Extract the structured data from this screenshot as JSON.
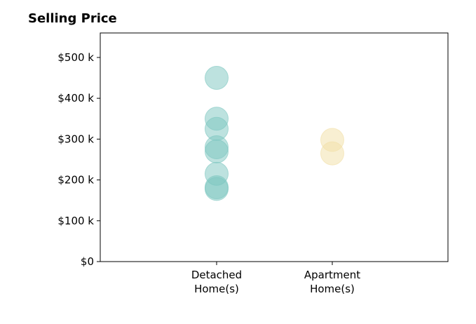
{
  "chart_data": {
    "type": "scatter",
    "title": "Selling Price",
    "categories": [
      "Detached\nHome(s)",
      "Apartment\nHome(s)"
    ],
    "y_ticks": [
      "$0",
      "$100 k",
      "$200 k",
      "$300 k",
      "$400 k",
      "$500 k"
    ],
    "ylim": [
      0,
      560000
    ],
    "grid": false,
    "series": [
      {
        "category_index": 0,
        "color": "#7cc6bf",
        "values": [
          450000,
          350000,
          325000,
          280000,
          270000,
          215000,
          182000,
          178000
        ]
      },
      {
        "category_index": 1,
        "color": "#f2dfa6",
        "values": [
          298000,
          265000
        ]
      }
    ]
  }
}
